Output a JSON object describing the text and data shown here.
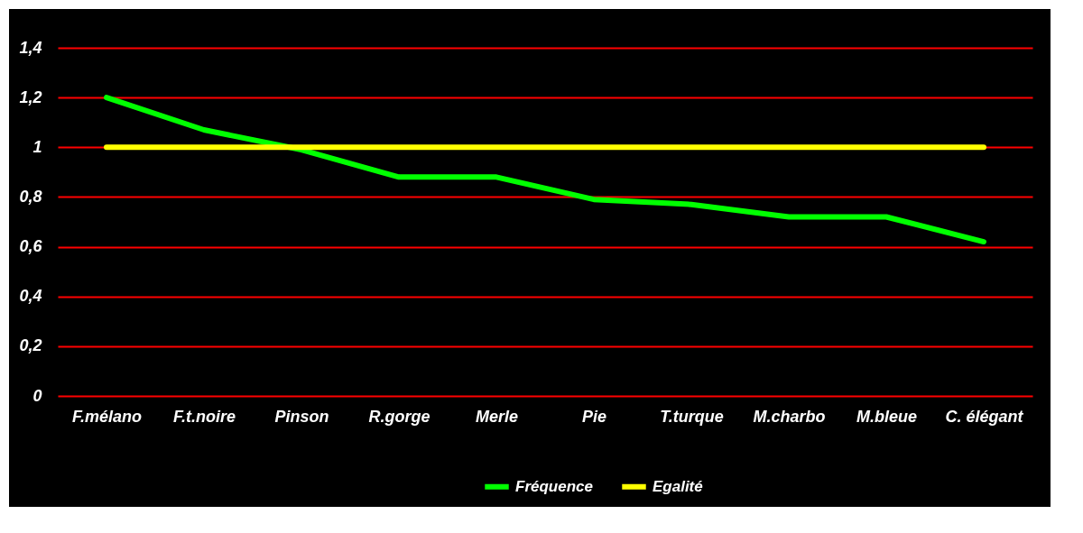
{
  "chart_data": {
    "type": "line",
    "categories": [
      "F.mélano",
      "F.t.noire",
      "Pinson",
      "R.gorge",
      "Merle",
      "Pie",
      "T.turque",
      "M.charbo",
      "M.bleue",
      "C. élégant"
    ],
    "series": [
      {
        "name": "Fréquence",
        "color": "#00ff00",
        "values": [
          1.2,
          1.07,
          0.99,
          0.88,
          0.88,
          0.79,
          0.77,
          0.72,
          0.72,
          0.62
        ]
      },
      {
        "name": "Egalité",
        "color": "#ffff00",
        "values": [
          1,
          1,
          1,
          1,
          1,
          1,
          1,
          1,
          1,
          1
        ]
      }
    ],
    "ylim": [
      0,
      1.4
    ],
    "yticks": [
      0,
      {
        "value": 0.2,
        "label": "0,2"
      },
      {
        "value": 0.4,
        "label": "0,4"
      },
      {
        "value": 0.6,
        "label": "0,6"
      },
      {
        "value": 0.8,
        "label": "0,8"
      },
      1,
      {
        "value": 1.2,
        "label": "1,2"
      },
      {
        "value": 1.4,
        "label": "1,4"
      }
    ],
    "grid": "y",
    "legend": "bottom",
    "marker": "none",
    "line_style": "solid"
  }
}
